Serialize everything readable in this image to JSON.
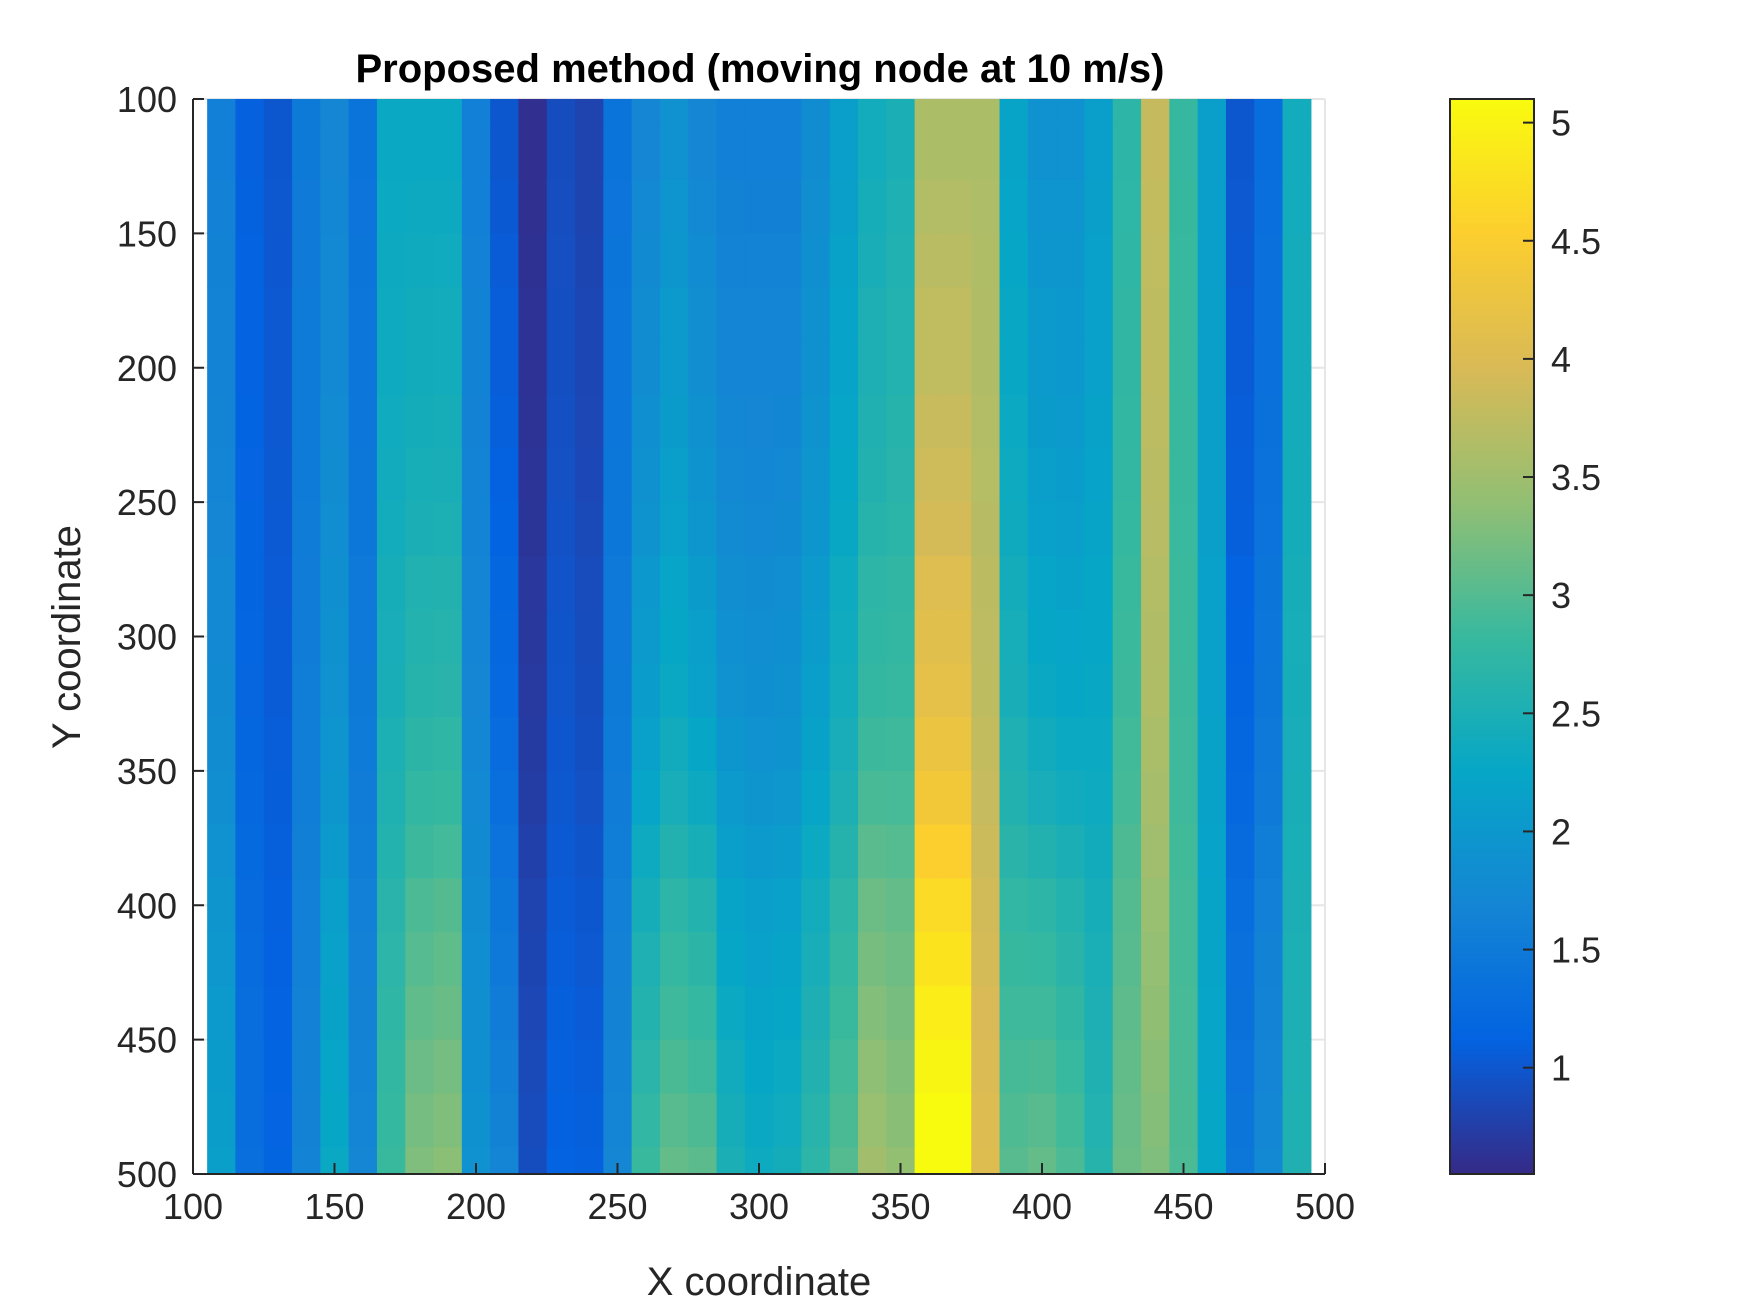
{
  "chart_data": {
    "type": "heatmap",
    "title": "Proposed method (moving node at 10 m/s)",
    "xlabel": "X coordinate",
    "ylabel": "Y coordinate",
    "xlim": [
      100,
      500
    ],
    "ylim": [
      100,
      500
    ],
    "y_direction": "reversed",
    "grid": true,
    "xticks": [
      100,
      150,
      200,
      250,
      300,
      350,
      400,
      450,
      500
    ],
    "yticks": [
      100,
      150,
      200,
      250,
      300,
      350,
      400,
      450,
      500
    ],
    "x": [
      110,
      120,
      130,
      140,
      150,
      160,
      170,
      180,
      190,
      200,
      210,
      220,
      230,
      240,
      250,
      260,
      270,
      280,
      290,
      300,
      310,
      320,
      330,
      340,
      350,
      360,
      370,
      380,
      390,
      400,
      410,
      420,
      430,
      440,
      450,
      460,
      470,
      480,
      490
    ],
    "y": [
      100,
      120,
      140,
      160,
      180,
      200,
      220,
      240,
      260,
      280,
      300,
      320,
      340,
      360,
      380,
      400,
      420,
      440,
      460,
      480,
      500
    ],
    "colorbar": {
      "clim": [
        0.55,
        5.1
      ],
      "ticks": [
        1,
        1.5,
        2,
        2.5,
        3,
        3.5,
        4,
        4.5,
        5
      ],
      "colormap": "parula",
      "colormap_stops": [
        "#352a87",
        "#0363e1",
        "#1485d4",
        "#06a7c6",
        "#38b99e",
        "#92bf73",
        "#d9ba56",
        "#fcce2e",
        "#f9fb0e"
      ]
    },
    "profile_x": [
      1.6,
      1.1,
      1.0,
      1.5,
      1.7,
      1.4,
      2.3,
      2.3,
      2.3,
      1.6,
      1.0,
      0.6,
      0.9,
      0.8,
      1.4,
      1.7,
      1.9,
      1.7,
      1.6,
      1.6,
      1.6,
      1.8,
      2.1,
      2.4,
      2.5,
      3.6,
      3.6,
      3.6,
      2.2,
      1.9,
      1.9,
      2.1,
      2.7,
      3.8,
      2.8,
      2.1,
      1.0,
      1.3,
      2.4
    ],
    "profile_y_gain": [
      0,
      0,
      0.05,
      0.1,
      0.15,
      0.15,
      0.2,
      0.25,
      0.3,
      0.4,
      0.45,
      0.5,
      0.6,
      0.7,
      0.85,
      1.0,
      1.1,
      1.2,
      1.3,
      1.4,
      1.5
    ],
    "y_sensitivity": [
      0.35,
      0.15,
      0.1,
      0.1,
      0.4,
      0.2,
      0.35,
      0.65,
      0.7,
      0.2,
      0.45,
      0.2,
      0.15,
      0.2,
      0.2,
      0.75,
      0.8,
      0.9,
      0.6,
      0.5,
      0.55,
      0.6,
      0.6,
      0.75,
      0.6,
      1.1,
      1.1,
      0.3,
      0.55,
      0.8,
      0.7,
      0.35,
      0.3,
      -0.35,
      0.1,
      0.1,
      0.3,
      0.3,
      0.1
    ],
    "values_encoding": "value[row][col] = profile_x[col] + profile_y_gain[row] * y_sensitivity[col]"
  }
}
